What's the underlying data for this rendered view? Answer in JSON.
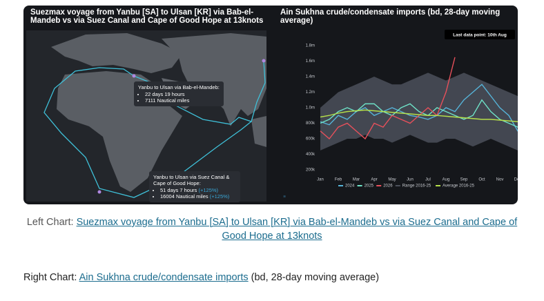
{
  "left_panel": {
    "title": "Suezmax voyage from Yanbu [SA] to Ulsan [KR] via Bab-el-Mandeb vs via Suez Canal and Cape of Good Hope at 13knots",
    "callouts": [
      {
        "heading": "Yanbu to Ulsan via Bab-el-Mandeb:",
        "items": [
          {
            "text": "22 days 19 hours"
          },
          {
            "text": "7111 Nautical miles"
          }
        ]
      },
      {
        "heading": "Yanbu to Ulsan via Suez Canal & Cape of Good Hope:",
        "items": [
          {
            "text": "51 days 7 hours",
            "extra": "(+125%)"
          },
          {
            "text": "16004 Nautical miles",
            "extra": "(+125%)"
          }
        ]
      }
    ]
  },
  "chart_data": {
    "type": "line",
    "title": "Ain Sukhna crude/condensate imports (bd, 28-day moving average)",
    "annotation": "Last data point: 10th Aug",
    "categories": [
      "Jan",
      null,
      "Feb",
      null,
      "Mar",
      null,
      "Apr",
      null,
      "May",
      null,
      "Jun",
      null,
      "Jul",
      null,
      "Aug",
      null,
      "Sep",
      null,
      "Oct",
      null,
      "Nov",
      null,
      "Dec",
      null
    ],
    "ylim": [
      200000,
      1800000
    ],
    "yticks": [
      {
        "value": 200000,
        "label": "200k"
      },
      {
        "value": 400000,
        "label": "400k"
      },
      {
        "value": 600000,
        "label": "600k"
      },
      {
        "value": 800000,
        "label": "800k"
      },
      {
        "value": 1000000,
        "label": "1.0m"
      },
      {
        "value": 1200000,
        "label": "1.2m"
      },
      {
        "value": 1400000,
        "label": "1.4m"
      },
      {
        "value": 1600000,
        "label": "1.6m"
      },
      {
        "value": 1800000,
        "label": "1.8m"
      }
    ],
    "grid": false,
    "band": {
      "name": "Range 2016-25",
      "color": "#4b505a",
      "low": [
        450000,
        500000,
        550000,
        600000,
        600000,
        650000,
        600000,
        600000,
        550000,
        600000,
        650000,
        600000,
        550000,
        550000,
        600000,
        600000,
        550000,
        500000,
        550000,
        600000,
        550000,
        500000,
        450000,
        400000
      ],
      "high": [
        1000000,
        1100000,
        1200000,
        1250000,
        1300000,
        1350000,
        1400000,
        1350000,
        1300000,
        1300000,
        1350000,
        1400000,
        1450000,
        1400000,
        1350000,
        1400000,
        1450000,
        1400000,
        1350000,
        1300000,
        1250000,
        1200000,
        1150000,
        1100000
      ]
    },
    "series": [
      {
        "name": "2024",
        "color": "#56b4d9",
        "values": [
          820000,
          780000,
          900000,
          850000,
          950000,
          1000000,
          900000,
          950000,
          1000000,
          950000,
          900000,
          880000,
          850000,
          900000,
          1000000,
          950000,
          1100000,
          1200000,
          1300000,
          1150000,
          1000000,
          900000,
          700000,
          600000
        ]
      },
      {
        "name": "2025",
        "color": "#6fe3c8",
        "values": [
          800000,
          850000,
          950000,
          1000000,
          950000,
          1050000,
          1050000,
          950000,
          900000,
          1000000,
          1050000,
          950000,
          900000,
          1000000,
          950000,
          900000,
          850000,
          900000,
          1100000,
          950000,
          850000,
          800000,
          750000,
          800000
        ]
      },
      {
        "name": "2026",
        "color": "#e8505b",
        "values": [
          700000,
          600000,
          750000,
          800000,
          700000,
          600000,
          800000,
          750000,
          900000,
          850000,
          800000,
          900000,
          1000000,
          900000,
          1200000,
          1650000,
          null,
          null,
          null,
          null,
          null,
          null,
          null,
          null
        ]
      },
      {
        "name": "Average 2016-25",
        "color": "#b6e04a",
        "values": [
          880000,
          900000,
          930000,
          950000,
          960000,
          970000,
          960000,
          950000,
          940000,
          930000,
          920000,
          910000,
          900000,
          900000,
          890000,
          880000,
          870000,
          860000,
          850000,
          850000,
          840000,
          830000,
          820000,
          810000
        ]
      }
    ]
  },
  "captions": [
    {
      "prefix": "Left Chart: ",
      "link": "Suezmax voyage from Yanbu [SA] to Ulsan [KR] via Bab-el-Mandeb vs via Suez Canal and Cape of Good Hope at 13knots"
    },
    {
      "prefix": "Right Chart: ",
      "link": "Ain Sukhna crude/condensate imports",
      "suffix": " (bd, 28-day moving average)"
    }
  ]
}
